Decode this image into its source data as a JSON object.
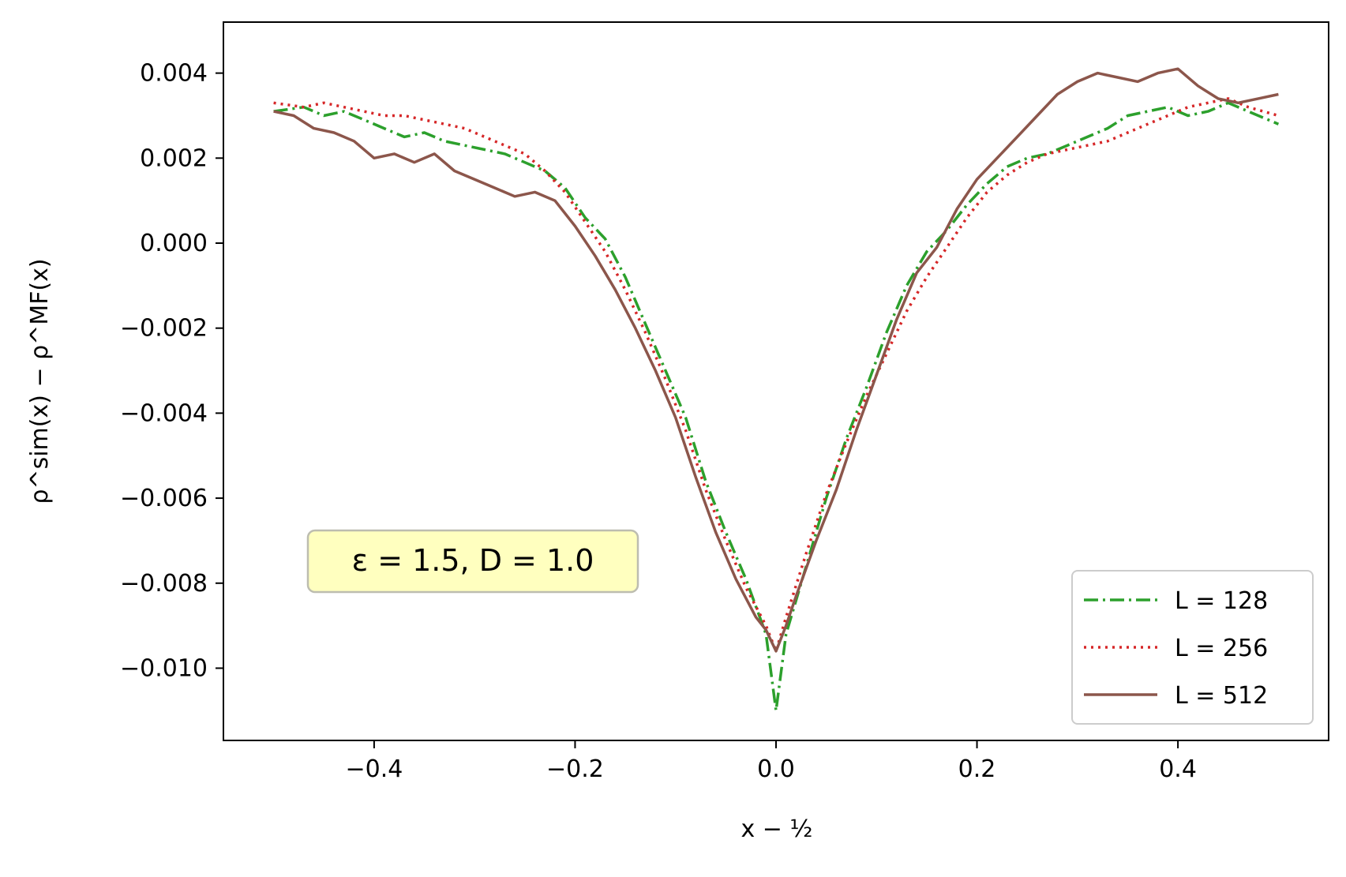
{
  "chart_data": {
    "type": "line",
    "xlabel": "x − ½",
    "ylabel": "ρ^sim(x) − ρ^MF(x)",
    "xlim": [
      -0.55,
      0.55
    ],
    "ylim": [
      -0.0117,
      0.0052
    ],
    "xticks": [
      -0.4,
      -0.2,
      0.0,
      0.2,
      0.4
    ],
    "xtick_labels": [
      "−0.4",
      "−0.2",
      "0.0",
      "0.2",
      "0.4"
    ],
    "yticks": [
      0.004,
      0.002,
      0.0,
      -0.002,
      -0.004,
      -0.006,
      -0.008,
      -0.01
    ],
    "ytick_labels": [
      "0.004",
      "0.002",
      "0.000",
      "−0.002",
      "−0.004",
      "−0.006",
      "−0.008",
      "−0.010"
    ],
    "annotation": "ε = 1.5,  D = 1.0",
    "legend_position": "lower-right",
    "grid": false,
    "series": [
      {
        "name": "L = 128",
        "color": "#2ca02c",
        "style": "dashdot",
        "x": [
          -0.5,
          -0.47,
          -0.45,
          -0.43,
          -0.41,
          -0.39,
          -0.37,
          -0.35,
          -0.33,
          -0.31,
          -0.29,
          -0.27,
          -0.25,
          -0.23,
          -0.21,
          -0.19,
          -0.17,
          -0.15,
          -0.13,
          -0.11,
          -0.09,
          -0.07,
          -0.05,
          -0.03,
          -0.01,
          0.0,
          0.01,
          0.03,
          0.05,
          0.07,
          0.09,
          0.11,
          0.13,
          0.15,
          0.17,
          0.19,
          0.21,
          0.23,
          0.25,
          0.27,
          0.29,
          0.31,
          0.33,
          0.35,
          0.37,
          0.39,
          0.41,
          0.43,
          0.45,
          0.47,
          0.5
        ],
        "y": [
          0.0031,
          0.0032,
          0.003,
          0.0031,
          0.0029,
          0.0027,
          0.0025,
          0.0026,
          0.0024,
          0.0023,
          0.0022,
          0.0021,
          0.0019,
          0.0017,
          0.0013,
          0.0006,
          0.0001,
          -0.0008,
          -0.0019,
          -0.003,
          -0.0041,
          -0.0056,
          -0.0068,
          -0.0079,
          -0.0092,
          -0.011,
          -0.0092,
          -0.0076,
          -0.006,
          -0.0046,
          -0.0034,
          -0.0021,
          -0.001,
          -0.0002,
          0.0003,
          0.0009,
          0.0014,
          0.0018,
          0.002,
          0.0021,
          0.0023,
          0.0025,
          0.0027,
          0.003,
          0.0031,
          0.0032,
          0.003,
          0.0031,
          0.0033,
          0.0031,
          0.0028
        ]
      },
      {
        "name": "L = 256",
        "color": "#d62728",
        "style": "dotted",
        "x": [
          -0.5,
          -0.47,
          -0.45,
          -0.43,
          -0.41,
          -0.39,
          -0.37,
          -0.35,
          -0.33,
          -0.31,
          -0.29,
          -0.27,
          -0.25,
          -0.23,
          -0.21,
          -0.19,
          -0.17,
          -0.15,
          -0.13,
          -0.11,
          -0.09,
          -0.07,
          -0.05,
          -0.03,
          -0.01,
          0.0,
          0.01,
          0.03,
          0.05,
          0.07,
          0.09,
          0.11,
          0.13,
          0.15,
          0.17,
          0.19,
          0.21,
          0.23,
          0.25,
          0.27,
          0.29,
          0.31,
          0.33,
          0.35,
          0.37,
          0.39,
          0.41,
          0.43,
          0.45,
          0.47,
          0.5
        ],
        "y": [
          0.0033,
          0.0032,
          0.0033,
          0.0032,
          0.0031,
          0.003,
          0.003,
          0.0029,
          0.0028,
          0.0027,
          0.0025,
          0.0023,
          0.0021,
          0.0017,
          0.0012,
          0.0005,
          -0.0002,
          -0.0011,
          -0.0021,
          -0.0032,
          -0.0044,
          -0.0058,
          -0.007,
          -0.0081,
          -0.009,
          -0.0096,
          -0.0088,
          -0.0073,
          -0.0059,
          -0.0047,
          -0.0036,
          -0.0026,
          -0.0016,
          -0.0008,
          -0.0001,
          0.0006,
          0.0012,
          0.0016,
          0.0019,
          0.0021,
          0.0022,
          0.0023,
          0.0024,
          0.0026,
          0.0028,
          0.003,
          0.0032,
          0.0033,
          0.0034,
          0.0032,
          0.003
        ]
      },
      {
        "name": "L = 512",
        "color": "#8c564b",
        "style": "solid",
        "x": [
          -0.5,
          -0.48,
          -0.46,
          -0.44,
          -0.42,
          -0.4,
          -0.38,
          -0.36,
          -0.34,
          -0.32,
          -0.3,
          -0.28,
          -0.26,
          -0.24,
          -0.22,
          -0.2,
          -0.18,
          -0.16,
          -0.14,
          -0.12,
          -0.1,
          -0.08,
          -0.06,
          -0.04,
          -0.02,
          -0.01,
          0.0,
          0.01,
          0.02,
          0.04,
          0.06,
          0.08,
          0.1,
          0.12,
          0.14,
          0.16,
          0.18,
          0.2,
          0.22,
          0.24,
          0.26,
          0.28,
          0.3,
          0.32,
          0.34,
          0.36,
          0.38,
          0.4,
          0.42,
          0.44,
          0.46,
          0.48,
          0.5
        ],
        "y": [
          0.0031,
          0.003,
          0.0027,
          0.0026,
          0.0024,
          0.002,
          0.0021,
          0.0019,
          0.0021,
          0.0017,
          0.0015,
          0.0013,
          0.0011,
          0.0012,
          0.001,
          0.0004,
          -0.0003,
          -0.0011,
          -0.002,
          -0.003,
          -0.0041,
          -0.0055,
          -0.0068,
          -0.0079,
          -0.0088,
          -0.0091,
          -0.0096,
          -0.009,
          -0.0083,
          -0.007,
          -0.0058,
          -0.0044,
          -0.0031,
          -0.0018,
          -0.0007,
          -0.0001,
          0.0008,
          0.0015,
          0.002,
          0.0025,
          0.003,
          0.0035,
          0.0038,
          0.004,
          0.0039,
          0.0038,
          0.004,
          0.0041,
          0.0037,
          0.0034,
          0.0033,
          0.0034,
          0.0035
        ]
      }
    ]
  }
}
